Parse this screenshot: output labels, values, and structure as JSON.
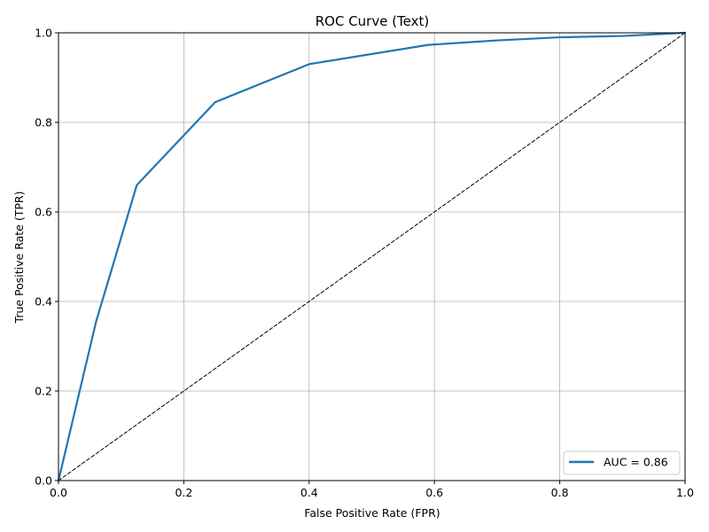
{
  "chart_data": {
    "type": "line",
    "title": "ROC Curve (Text)",
    "xlabel": "False Positive Rate (FPR)",
    "ylabel": "True Positive Rate (TPR)",
    "xlim": [
      0,
      1
    ],
    "ylim": [
      0,
      1
    ],
    "grid": true,
    "legend_position": "bottom-right",
    "x_ticks": [
      "0.0",
      "0.2",
      "0.4",
      "0.6",
      "0.8",
      "1.0"
    ],
    "y_ticks": [
      "0.0",
      "0.2",
      "0.4",
      "0.6",
      "0.8",
      "1.0"
    ],
    "series": [
      {
        "name": "AUC = 0.86",
        "color": "#1f77b4",
        "style": "solid",
        "x": [
          0.0,
          0.06,
          0.125,
          0.25,
          0.4,
          0.59,
          0.7,
          0.8,
          0.9,
          1.0
        ],
        "y": [
          0.0,
          0.355,
          0.66,
          0.845,
          0.93,
          0.973,
          0.983,
          0.99,
          0.993,
          1.0
        ]
      },
      {
        "color": "#000000",
        "style": "dashed",
        "x": [
          0.0,
          1.0
        ],
        "y": [
          0.0,
          1.0
        ]
      }
    ]
  }
}
